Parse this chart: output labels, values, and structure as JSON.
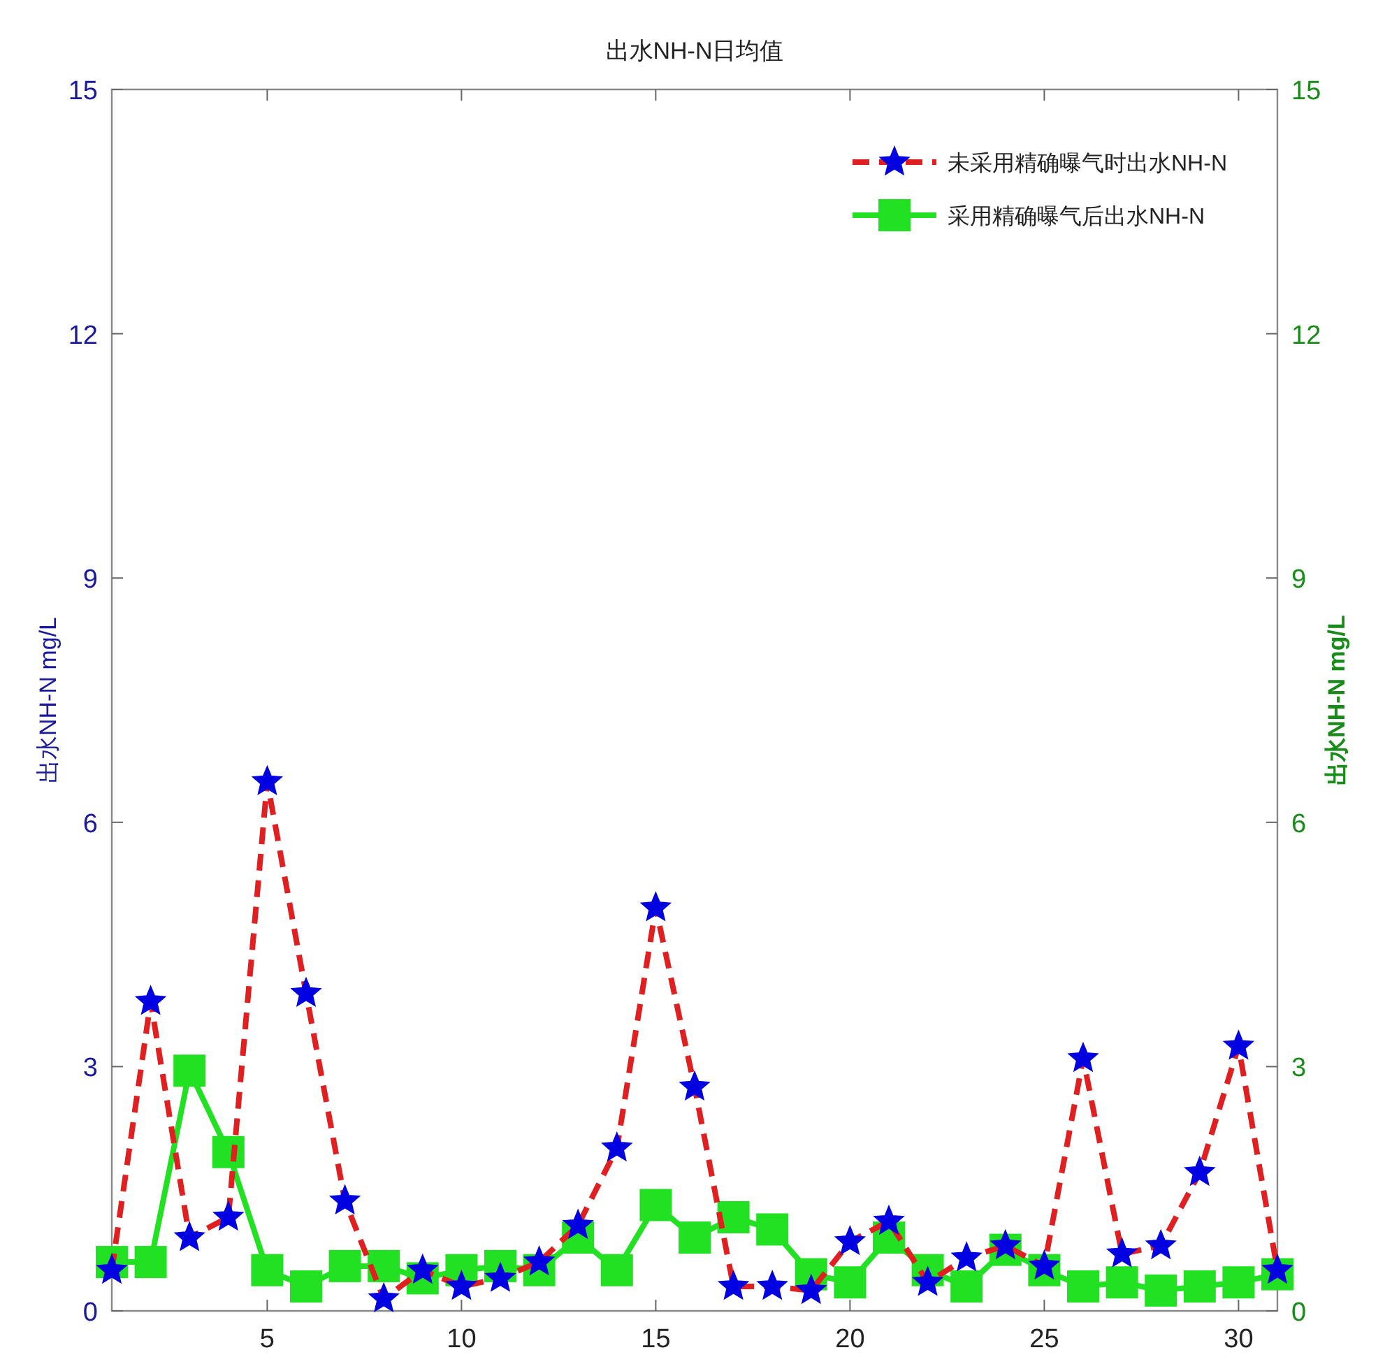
{
  "chart_data": {
    "type": "line",
    "title": "出水NH-N日均值",
    "ylabel": "出水NH-N  mg/L",
    "y2label": "出水NH-N  mg/L",
    "x": [
      1,
      2,
      3,
      4,
      5,
      6,
      7,
      8,
      9,
      10,
      11,
      12,
      13,
      14,
      15,
      16,
      17,
      18,
      19,
      20,
      21,
      22,
      23,
      24,
      25,
      26,
      27,
      28,
      29,
      30,
      31
    ],
    "xlim": [
      1,
      31
    ],
    "xticks": [
      5,
      10,
      15,
      20,
      25,
      30
    ],
    "ylim": [
      0,
      15
    ],
    "yticks": [
      0,
      3,
      6,
      9,
      12,
      15
    ],
    "y2lim": [
      0,
      15
    ],
    "y2ticks": [
      0,
      3,
      6,
      9,
      12,
      15
    ],
    "grid": false,
    "legend": "top right",
    "series": [
      {
        "name": "未采用精确曝气时出水NH-N",
        "color": "#e02020",
        "colors": [
          "#0000e0",
          "#0000e0",
          "#0000e0",
          "#0000e0",
          "#0000e0",
          "#0000e0",
          "#0000e0",
          "#0000e0",
          "#0000e0",
          "#0000e0",
          "#0000e0",
          "#0000e0",
          "#0000e0",
          "#0000e0",
          "#0000e0",
          "#0000e0",
          "#0000e0",
          "#0000e0",
          "#0000e0",
          "#0000e0",
          "#0000e0",
          "#0000e0",
          "#0000e0",
          "#0000e0",
          "#0000e0",
          "#0000e0",
          "#0000e0",
          "#0000e0",
          "#0000e0",
          "#0000e0",
          "#0000e0"
        ],
        "marker": "star",
        "line_style": "dashed",
        "values": [
          0.5,
          3.8,
          0.9,
          1.15,
          6.5,
          3.9,
          1.35,
          0.15,
          0.5,
          0.3,
          0.4,
          0.6,
          1.05,
          2.0,
          4.95,
          2.75,
          0.3,
          0.3,
          0.25,
          0.85,
          1.1,
          0.35,
          0.65,
          0.8,
          0.55,
          3.1,
          0.7,
          0.8,
          1.7,
          3.25,
          0.5
        ]
      },
      {
        "name": "采用精确曝气后出水NH-N",
        "color": "#22e022",
        "marker": "square",
        "line_style": "solid",
        "values": [
          0.6,
          0.6,
          2.95,
          1.95,
          0.5,
          0.3,
          0.55,
          0.55,
          0.4,
          0.5,
          0.55,
          0.5,
          0.9,
          0.5,
          1.3,
          0.9,
          1.15,
          1.0,
          0.45,
          0.35,
          0.9,
          0.5,
          0.3,
          0.75,
          0.5,
          0.3,
          0.35,
          0.25,
          0.3,
          0.35,
          0.45
        ]
      }
    ]
  }
}
